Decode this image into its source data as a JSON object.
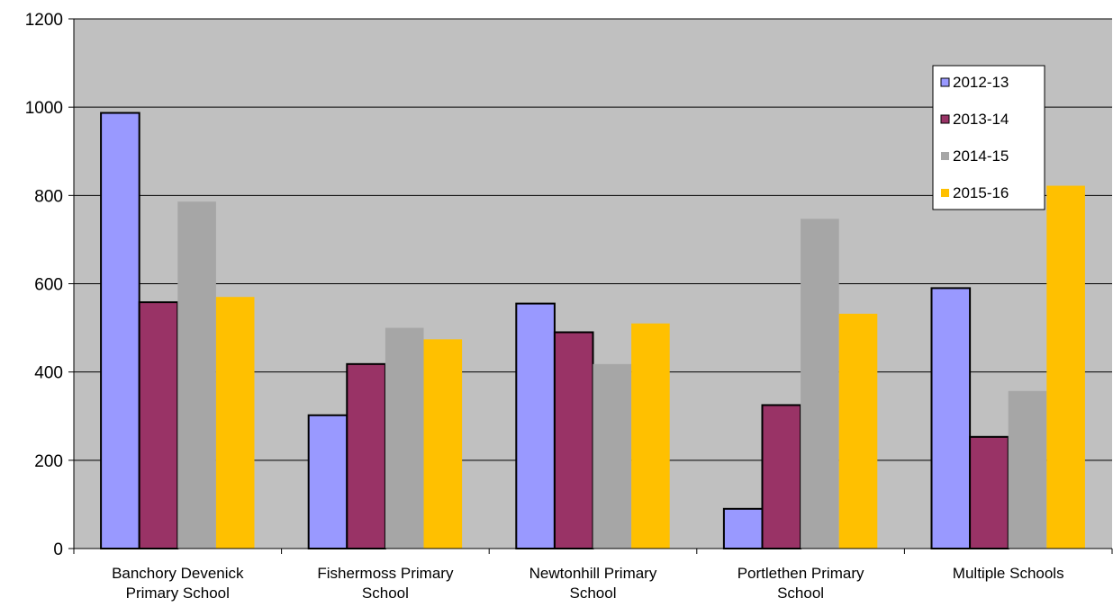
{
  "chart_data": {
    "type": "bar",
    "title": "",
    "xlabel": "",
    "ylabel": "",
    "ylim": [
      0,
      1200
    ],
    "yticks": [
      0,
      200,
      400,
      600,
      800,
      1000,
      1200
    ],
    "grid": "horizontal",
    "legend_position": "top-right",
    "categories": [
      [
        "Banchory Devenick",
        "Primary School"
      ],
      [
        "Fishermoss Primary",
        "School"
      ],
      [
        "Newtonhill Primary",
        "School"
      ],
      [
        "Portlethen Primary",
        "School"
      ],
      [
        "Multiple Schools"
      ]
    ],
    "series": [
      {
        "name": "2012-13",
        "color": "#9999ff",
        "outlined": true,
        "values": [
          987,
          302,
          555,
          90,
          590
        ]
      },
      {
        "name": "2013-14",
        "color": "#993366",
        "outlined": true,
        "values": [
          558,
          418,
          490,
          325,
          253
        ]
      },
      {
        "name": "2014-15",
        "color": "#a6a6a6",
        "outlined": false,
        "values": [
          786,
          500,
          418,
          747,
          357
        ]
      },
      {
        "name": "2015-16",
        "color": "#ffc000",
        "outlined": false,
        "values": [
          570,
          474,
          510,
          532,
          822
        ]
      }
    ],
    "colors": {
      "plot_background": "#c0c0c0",
      "gridline": "#000000",
      "axis": "#000000"
    }
  }
}
